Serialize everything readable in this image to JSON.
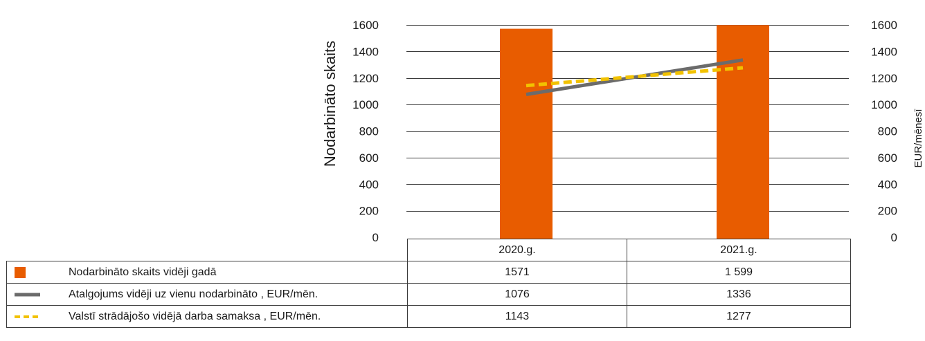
{
  "chart_data": {
    "type": "bar+line",
    "categories": [
      "2020.g.",
      "2021.g."
    ],
    "left_axis": {
      "label": "Nodarbināto skaits",
      "ticks": [
        "0",
        "200",
        "400",
        "600",
        "800",
        "1000",
        "1200",
        "1400",
        "1600"
      ],
      "ylim": [
        0,
        1600
      ]
    },
    "right_axis": {
      "label": "EUR/mēnesī",
      "ticks": [
        "0",
        "200",
        "400",
        "600",
        "800",
        "1000",
        "1200",
        "1400",
        "1600"
      ],
      "ylim": [
        0,
        1600
      ]
    },
    "grid": true,
    "series": [
      {
        "name": "Nodarbināto skaits vidēji gadā",
        "kind": "bar",
        "axis": "left",
        "color": "#e85c00",
        "values": [
          1571,
          1599
        ],
        "display": [
          "1571",
          "1 599"
        ]
      },
      {
        "name": "Atalgojums vidēji uz vienu nodarbināto , EUR/mēn.",
        "kind": "line",
        "axis": "right",
        "color": "#6b6b6b",
        "values": [
          1076,
          1336
        ],
        "display": [
          "1076",
          "1336"
        ]
      },
      {
        "name": "Valstī strādājošo vidējā darba samaksa , EUR/mēn.",
        "kind": "line-dashed",
        "axis": "right",
        "color": "#f2c200",
        "values": [
          1143,
          1277
        ],
        "display": [
          "1143",
          "1277"
        ]
      }
    ]
  }
}
